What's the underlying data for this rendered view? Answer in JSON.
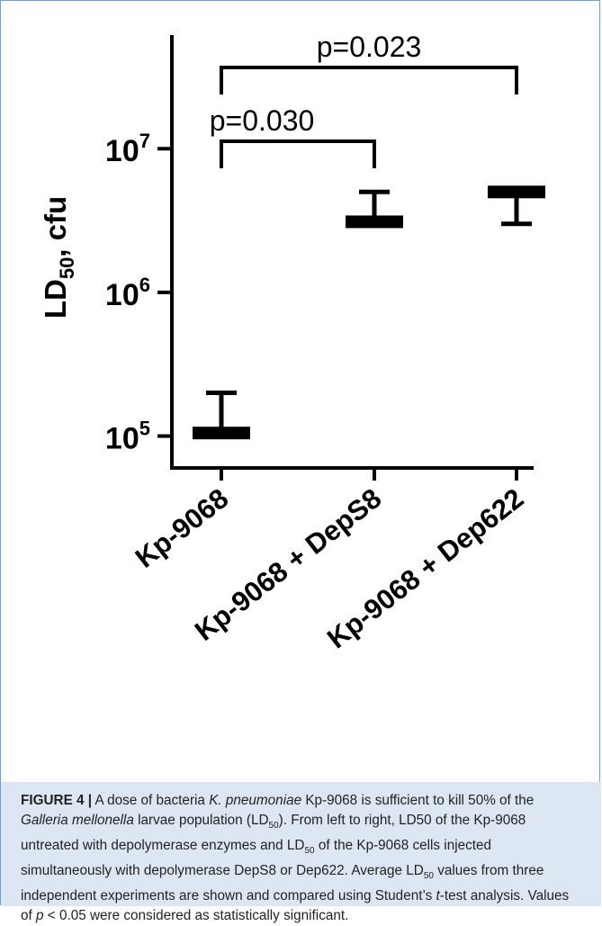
{
  "chart_data": {
    "type": "scatter",
    "title": "",
    "xlabel": "",
    "ylabel_parts": [
      "LD",
      "50",
      ", cfu"
    ],
    "yscale": "log",
    "ylim": [
      60000,
      60000000
    ],
    "y_ticks": [
      {
        "value": 100000,
        "base": "10",
        "exp": "5"
      },
      {
        "value": 1000000,
        "base": "10",
        "exp": "6"
      },
      {
        "value": 10000000,
        "base": "10",
        "exp": "7"
      }
    ],
    "categories": [
      "Kp-9068",
      "Kp-9068 + DepS8",
      "Kp-9068 + Dep622"
    ],
    "series": [
      {
        "mean": [
          105000,
          3100000,
          5000000
        ],
        "error_high": [
          200000,
          5000000,
          5300000
        ],
        "error_low": [
          105000,
          3100000,
          3000000
        ]
      }
    ],
    "annotations": [
      {
        "label": "p=0.023",
        "from": 0,
        "to": 2,
        "level": 2
      },
      {
        "label": "p=0.030",
        "from": 0,
        "to": 1,
        "level": 1
      }
    ]
  },
  "caption": {
    "label": "FIGURE 4 |",
    "parts": [
      {
        "t": " A dose of bacteria ",
        "i": false
      },
      {
        "t": "K. pneumoniae",
        "i": true
      },
      {
        "t": " Kp-9068 is sufficient to kill 50% of the ",
        "i": false
      },
      {
        "t": "Galleria mellonella",
        "i": true
      },
      {
        "t": " larvae population (LD",
        "i": false
      },
      {
        "t": "50",
        "sub": true
      },
      {
        "t": "). From left to right, LD50 of the Kp-9068 untreated with depolymerase enzymes and LD",
        "i": false
      },
      {
        "t": "50",
        "sub": true
      },
      {
        "t": " of the Kp-9068 cells injected simultaneously with depolymerase DepS8 or Dep622. Average LD",
        "i": false
      },
      {
        "t": "50",
        "sub": true
      },
      {
        "t": " values from three independent experiments are shown and compared using Student’s ",
        "i": false
      },
      {
        "t": "t",
        "i": true
      },
      {
        "t": "-test analysis. Values of ",
        "i": false
      },
      {
        "t": "p",
        "i": true
      },
      {
        "t": " < 0.05 were considered as statistically significant.",
        "i": false
      }
    ]
  }
}
